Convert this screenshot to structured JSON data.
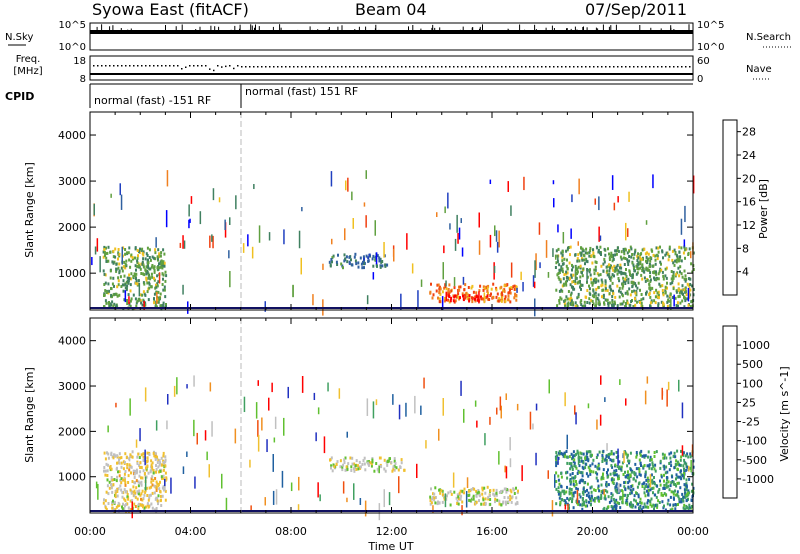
{
  "header": {
    "station": "Syowa East (fitACF)",
    "beam": "Beam 04",
    "date": "07/Sep/2011"
  },
  "noise_panel": {
    "left_label": "N.Sky",
    "left_top_tick": "10^5",
    "left_bottom_tick": "10^0",
    "right_top_tick": "10^5",
    "right_bottom_tick": "10^0",
    "right_label": "N.Search"
  },
  "freq_panel": {
    "left_label_line1": "Freq.",
    "left_label_line2": "[MHz]",
    "left_top_tick": "18",
    "left_bottom_tick": "8",
    "right_top_tick": "60",
    "right_bottom_tick": "0",
    "right_label": "Nave"
  },
  "cpid_panel": {
    "label": "CPID",
    "modes": [
      "normal (fast) -151 RF",
      "normal (fast) 151 RF"
    ]
  },
  "time_axis": {
    "label": "Time UT",
    "ticks": [
      "00:00",
      "04:00",
      "08:00",
      "12:00",
      "16:00",
      "20:00",
      "00:00"
    ]
  },
  "colors": {
    "power_scale": [
      "#0000ff",
      "#2040c0",
      "#3060a0",
      "#408060",
      "#60a040",
      "#f0c020",
      "#f08020",
      "#f04010",
      "#ff0000"
    ],
    "velocity_scale": [
      "#ff0000",
      "#f05010",
      "#f09020",
      "#f0c030",
      "#c0c0c0",
      "#60c030",
      "#40a060",
      "#2060a0",
      "#2030c0"
    ]
  },
  "chart_data": [
    {
      "type": "heatmap",
      "panel": "power",
      "ylabel": "Slant Range [km]",
      "xlabel": "",
      "ylim": [
        200,
        4500
      ],
      "xlim_hours": [
        0,
        24
      ],
      "y_ticks": [
        "1000",
        "2000",
        "3000",
        "4000"
      ],
      "colorbar": {
        "label": "Power [dB]",
        "ticks": [
          "4",
          "8",
          "12",
          "16",
          "20",
          "24",
          "28"
        ],
        "range": [
          0,
          30
        ]
      },
      "scatter_regions": [
        {
          "t_start": 0.5,
          "t_end": 3.0,
          "r_start": 250,
          "r_end": 1600,
          "value": 14
        },
        {
          "t_start": 9.5,
          "t_end": 11.8,
          "r_start": 1150,
          "r_end": 1450,
          "value": 10
        },
        {
          "t_start": 13.5,
          "t_end": 17.0,
          "r_start": 400,
          "r_end": 800,
          "value": 22
        },
        {
          "t_start": 14.2,
          "t_end": 15.8,
          "r_start": 400,
          "r_end": 550,
          "value": 29
        },
        {
          "t_start": 18.5,
          "t_end": 24.0,
          "r_start": 300,
          "r_end": 1600,
          "value": 14
        }
      ]
    },
    {
      "type": "heatmap",
      "panel": "velocity",
      "ylabel": "Slant Range [km]",
      "xlabel": "Time UT",
      "ylim": [
        200,
        4500
      ],
      "xlim_hours": [
        0,
        24
      ],
      "y_ticks": [
        "1000",
        "2000",
        "3000",
        "4000"
      ],
      "colorbar": {
        "label": "Velocity [m s^-1]",
        "ticks": [
          "1000",
          "500",
          "100",
          "25",
          "-25",
          "-100",
          "-500",
          "-1000"
        ],
        "range": [
          -1000,
          1000
        ]
      },
      "scatter_regions": [
        {
          "t_start": 0.5,
          "t_end": 3.0,
          "r_start": 250,
          "r_end": 1600,
          "value": -100
        },
        {
          "t_start": 9.5,
          "t_end": 12.5,
          "r_start": 1150,
          "r_end": 1450,
          "value": 0
        },
        {
          "t_start": 13.5,
          "t_end": 17.0,
          "r_start": 400,
          "r_end": 800,
          "value": 0
        },
        {
          "t_start": 18.5,
          "t_end": 24.0,
          "r_start": 300,
          "r_end": 1600,
          "value": 500
        }
      ]
    }
  ]
}
